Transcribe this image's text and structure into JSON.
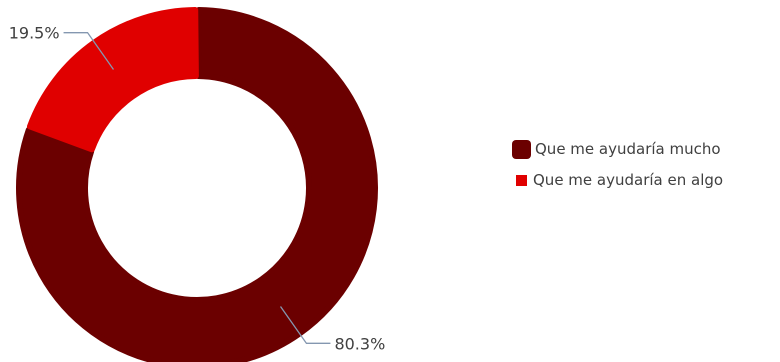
{
  "chart_data": {
    "type": "pie",
    "variant": "donut",
    "title": "",
    "categories": [
      "Que me ayudaría mucho",
      "Que me ayudaría en algo"
    ],
    "values": [
      80.3,
      19.5
    ],
    "labels": [
      "80.3%",
      "19.5%"
    ],
    "colors": [
      "#6B0000",
      "#E00000"
    ],
    "legend_position": "right"
  }
}
